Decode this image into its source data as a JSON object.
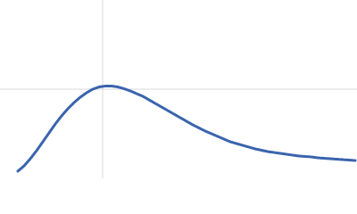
{
  "chart_data": {
    "type": "line",
    "x": [
      5,
      6.75,
      8.5,
      10.25,
      12,
      13.75,
      15.5,
      17.25,
      19,
      20.75,
      22.5,
      24.25,
      26,
      27.75,
      29.5,
      31.25,
      33,
      34.75,
      36.5,
      38.25,
      40,
      41.75,
      43.5,
      45.25,
      47,
      48.75,
      50.5,
      52.25,
      54,
      55.75,
      57.5,
      59.25,
      61,
      62.75,
      64.5,
      66.25,
      68,
      69.75,
      71.5,
      73.25,
      75,
      76.75,
      78.5,
      80.25,
      82,
      83.75,
      85.5,
      87.25,
      89,
      90.75,
      92.5,
      94.25,
      96,
      97.75,
      99.5
    ],
    "series": [
      {
        "color": "#3a64ad",
        "values": [
          4,
          7,
          11,
          15.5,
          20.5,
          25.5,
          30.5,
          35,
          39,
          42.5,
          45.5,
          48,
          50,
          51.25,
          51.75,
          51.75,
          51.25,
          50.25,
          49,
          47.5,
          46,
          44,
          42,
          40,
          38,
          36,
          34,
          32,
          30,
          28.25,
          26.5,
          25,
          23.5,
          22,
          20.5,
          19.5,
          18.5,
          17.5,
          16.5,
          15.75,
          15,
          14.5,
          14,
          13.5,
          13,
          12.5,
          12.25,
          12,
          11.5,
          11.25,
          11,
          10.75,
          10.5,
          10.25,
          10
        ]
      }
    ],
    "xlim": [
      0,
      100
    ],
    "ylim": [
      0,
      100
    ],
    "xticks": [
      28.75
    ],
    "yticks": [
      50
    ],
    "grid": true
  }
}
